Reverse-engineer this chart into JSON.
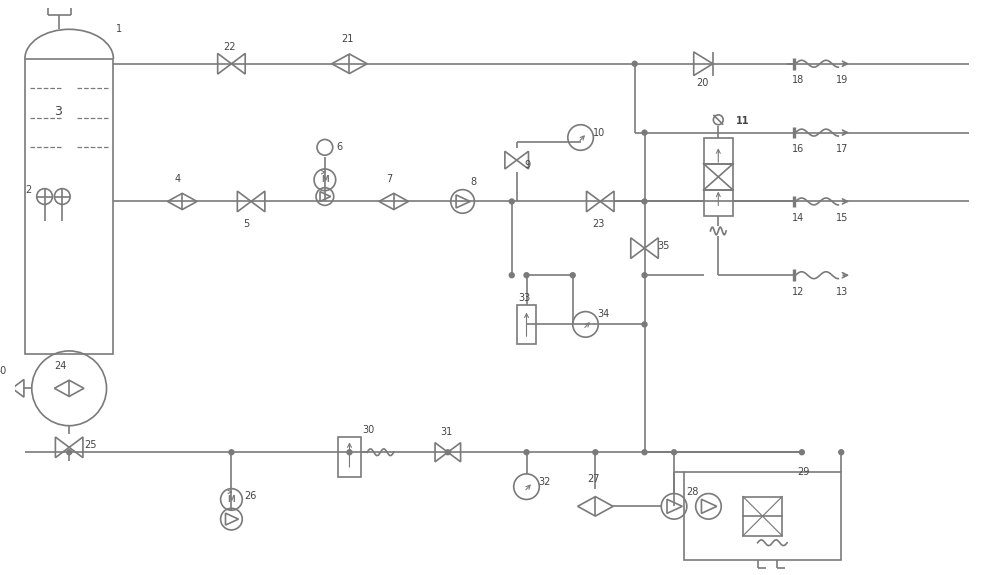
{
  "bg_color": "#ffffff",
  "lc": "#7a7a7a",
  "lw": 1.2,
  "fig_w": 10.0,
  "fig_h": 5.75,
  "xlim": [
    0,
    100
  ],
  "ylim": [
    0,
    57.5
  ]
}
